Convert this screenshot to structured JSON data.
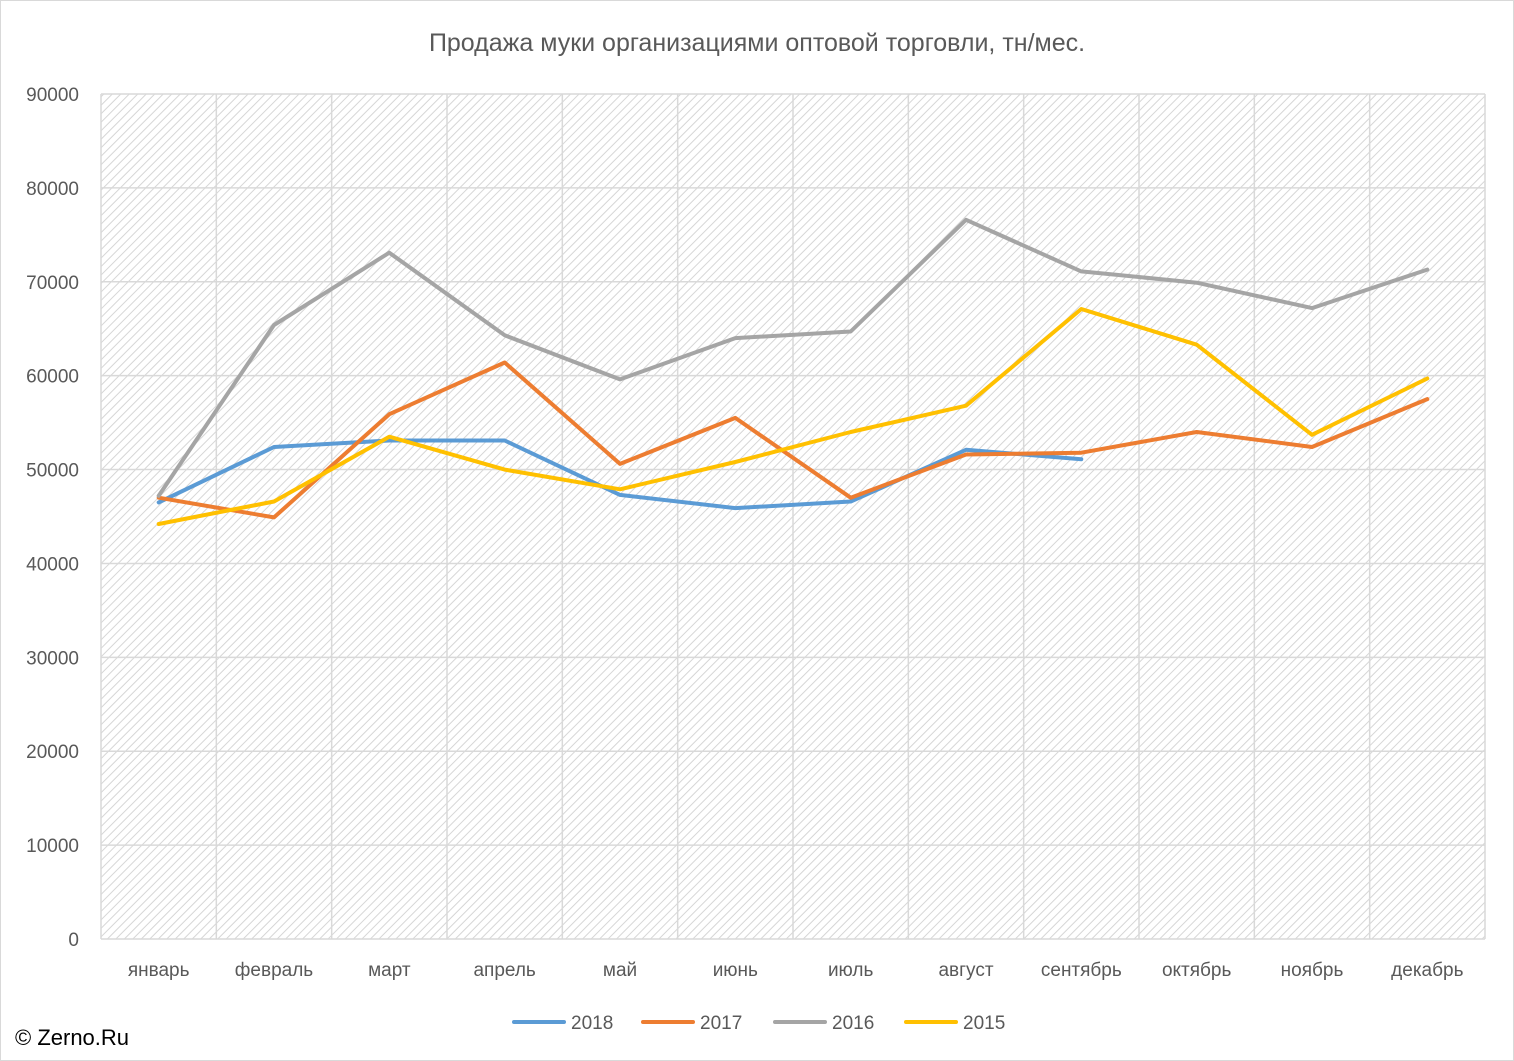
{
  "chart_data": {
    "type": "line",
    "title": "Продажа муки организациями оптовой торговли, тн/мес.",
    "xlabel": "",
    "ylabel": "",
    "categories": [
      "январь",
      "февраль",
      "март",
      "апрель",
      "май",
      "июнь",
      "июль",
      "август",
      "сентябрь",
      "октябрь",
      "ноябрь",
      "декабрь"
    ],
    "ylim": [
      0,
      90000
    ],
    "yticks": [
      0,
      10000,
      20000,
      30000,
      40000,
      50000,
      60000,
      70000,
      80000,
      90000
    ],
    "grid": true,
    "legend_position": "bottom",
    "series": [
      {
        "name": "2018",
        "color": "#5b9bd5",
        "values": [
          46500,
          52400,
          53100,
          53100,
          47300,
          45900,
          46600,
          52100,
          51100,
          null,
          null,
          null
        ]
      },
      {
        "name": "2017",
        "color": "#ed7d31",
        "values": [
          47000,
          44900,
          55900,
          61400,
          50600,
          55500,
          47000,
          51600,
          51800,
          54000,
          52400,
          57500
        ]
      },
      {
        "name": "2016",
        "color": "#a5a5a5",
        "values": [
          47200,
          65400,
          73100,
          64300,
          59600,
          64000,
          64700,
          76600,
          71100,
          69900,
          67200,
          71300
        ]
      },
      {
        "name": "2015",
        "color": "#ffc000",
        "values": [
          44200,
          46600,
          53500,
          50000,
          47900,
          50800,
          54000,
          56800,
          67100,
          63300,
          53700,
          59700
        ]
      }
    ]
  },
  "watermark": "© Zerno.Ru"
}
